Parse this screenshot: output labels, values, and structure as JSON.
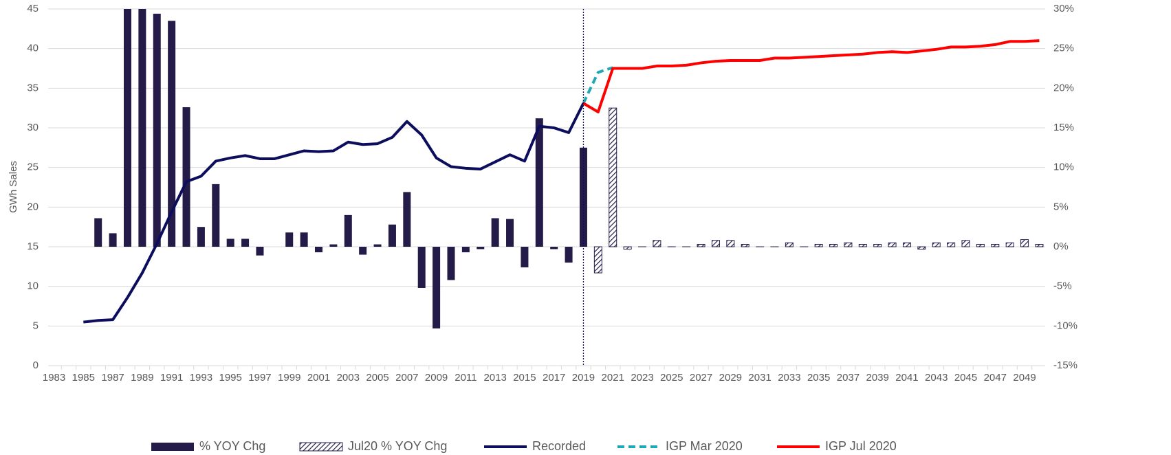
{
  "chart_data": {
    "type": "combo",
    "y_label": "GWh Sales",
    "xlim": [
      1982.6,
      2050.4
    ],
    "xticks": [
      1983,
      1985,
      1987,
      1989,
      1991,
      1993,
      1995,
      1997,
      1999,
      2001,
      2003,
      2005,
      2007,
      2009,
      2011,
      2013,
      2015,
      2017,
      2019,
      2021,
      2023,
      2025,
      2027,
      2029,
      2031,
      2033,
      2035,
      2037,
      2039,
      2041,
      2043,
      2045,
      2047,
      2049
    ],
    "ylim": [
      0,
      45
    ],
    "yticks": [
      0,
      5,
      10,
      15,
      20,
      25,
      30,
      35,
      40,
      45
    ],
    "y2lim": [
      -15,
      30
    ],
    "y2ticks": [
      {
        "value": -15,
        "label": "-15%"
      },
      {
        "value": -10,
        "label": "-10%"
      },
      {
        "value": -5,
        "label": "-5%"
      },
      {
        "value": 0,
        "label": "0%"
      },
      {
        "value": 5,
        "label": "5%"
      },
      {
        "value": 10,
        "label": "10%"
      },
      {
        "value": 15,
        "label": "15%"
      },
      {
        "value": 20,
        "label": "20%"
      },
      {
        "value": 25,
        "label": "25%"
      },
      {
        "value": 30,
        "label": "30%"
      }
    ],
    "grid": true,
    "vertical_line": 2019,
    "legend": "bottom",
    "series": [
      {
        "name": "% YOY Chg",
        "kind": "bar",
        "axis": "y2",
        "color": "#241b48",
        "x": [
          1986,
          1987,
          1988,
          1989,
          1990,
          1991,
          1992,
          1993,
          1994,
          1995,
          1996,
          1997,
          1998,
          1999,
          2000,
          2001,
          2002,
          2003,
          2004,
          2005,
          2006,
          2007,
          2008,
          2009,
          2010,
          2011,
          2012,
          2013,
          2014,
          2015,
          2016,
          2017,
          2018,
          2019
        ],
        "values": [
          3.6,
          1.7,
          30,
          30,
          29.4,
          28.5,
          17.6,
          2.5,
          7.9,
          1.0,
          1.0,
          -1.1,
          0,
          1.8,
          1.8,
          -0.7,
          0.3,
          4.0,
          -1.0,
          0.3,
          2.8,
          6.9,
          -5.2,
          -10.3,
          -4.2,
          -0.7,
          -0.3,
          3.6,
          3.5,
          -2.6,
          16.2,
          -0.3,
          -2.0,
          12.5
        ]
      },
      {
        "name": "Jul20 % YOY Chg",
        "kind": "bar",
        "hatch": true,
        "axis": "y2",
        "color": "#241b48",
        "x": [
          2020,
          2021,
          2022,
          2023,
          2024,
          2025,
          2026,
          2027,
          2028,
          2029,
          2030,
          2031,
          2032,
          2033,
          2034,
          2035,
          2036,
          2037,
          2038,
          2039,
          2040,
          2041,
          2042,
          2043,
          2044,
          2045,
          2046,
          2047,
          2048,
          2049,
          2050
        ],
        "values": [
          -3.3,
          17.5,
          -0.3,
          0,
          0.8,
          0,
          0,
          0.3,
          0.8,
          0.8,
          0.3,
          0,
          0,
          0.5,
          0,
          0.3,
          0.3,
          0.5,
          0.3,
          0.3,
          0.5,
          0.5,
          -0.3,
          0.5,
          0.5,
          0.8,
          0.3,
          0.3,
          0.5,
          0.9,
          0.3
        ]
      },
      {
        "name": "Recorded",
        "kind": "line",
        "color": "#0d0d5e",
        "x": [
          1985,
          1986,
          1987,
          1988,
          1989,
          1990,
          1991,
          1992,
          1993,
          1994,
          1995,
          1996,
          1997,
          1998,
          1999,
          2000,
          2001,
          2002,
          2003,
          2004,
          2005,
          2006,
          2007,
          2008,
          2009,
          2010,
          2011,
          2012,
          2013,
          2014,
          2015,
          2016,
          2017,
          2018,
          2019
        ],
        "values": [
          5.5,
          5.7,
          5.8,
          8.6,
          11.7,
          15.4,
          19.4,
          23.2,
          23.9,
          25.8,
          26.2,
          26.5,
          26.1,
          26.1,
          26.6,
          27.1,
          27.0,
          27.1,
          28.2,
          27.9,
          28.0,
          28.8,
          30.8,
          29.1,
          26.2,
          25.1,
          24.9,
          24.8,
          25.7,
          26.6,
          25.8,
          30.2,
          30.0,
          29.4,
          33.1
        ]
      },
      {
        "name": "IGP Mar 2020",
        "kind": "line",
        "dash": true,
        "color": "#1fa9b5",
        "x": [
          2019,
          2020,
          2021
        ],
        "values": [
          33.1,
          37.0,
          37.6
        ]
      },
      {
        "name": "IGP Jul 2020",
        "kind": "line",
        "color": "#ff0000",
        "x": [
          2019,
          2020,
          2021,
          2022,
          2023,
          2024,
          2025,
          2026,
          2027,
          2028,
          2029,
          2030,
          2031,
          2032,
          2033,
          2034,
          2035,
          2036,
          2037,
          2038,
          2039,
          2040,
          2041,
          2042,
          2043,
          2044,
          2045,
          2046,
          2047,
          2048,
          2049,
          2050
        ],
        "values": [
          33.1,
          32.0,
          37.5,
          37.5,
          37.5,
          37.8,
          37.8,
          37.9,
          38.2,
          38.4,
          38.5,
          38.5,
          38.5,
          38.8,
          38.8,
          38.9,
          39.0,
          39.1,
          39.2,
          39.3,
          39.5,
          39.6,
          39.5,
          39.7,
          39.9,
          40.2,
          40.2,
          40.3,
          40.5,
          40.9,
          40.9,
          41.0
        ]
      }
    ]
  }
}
